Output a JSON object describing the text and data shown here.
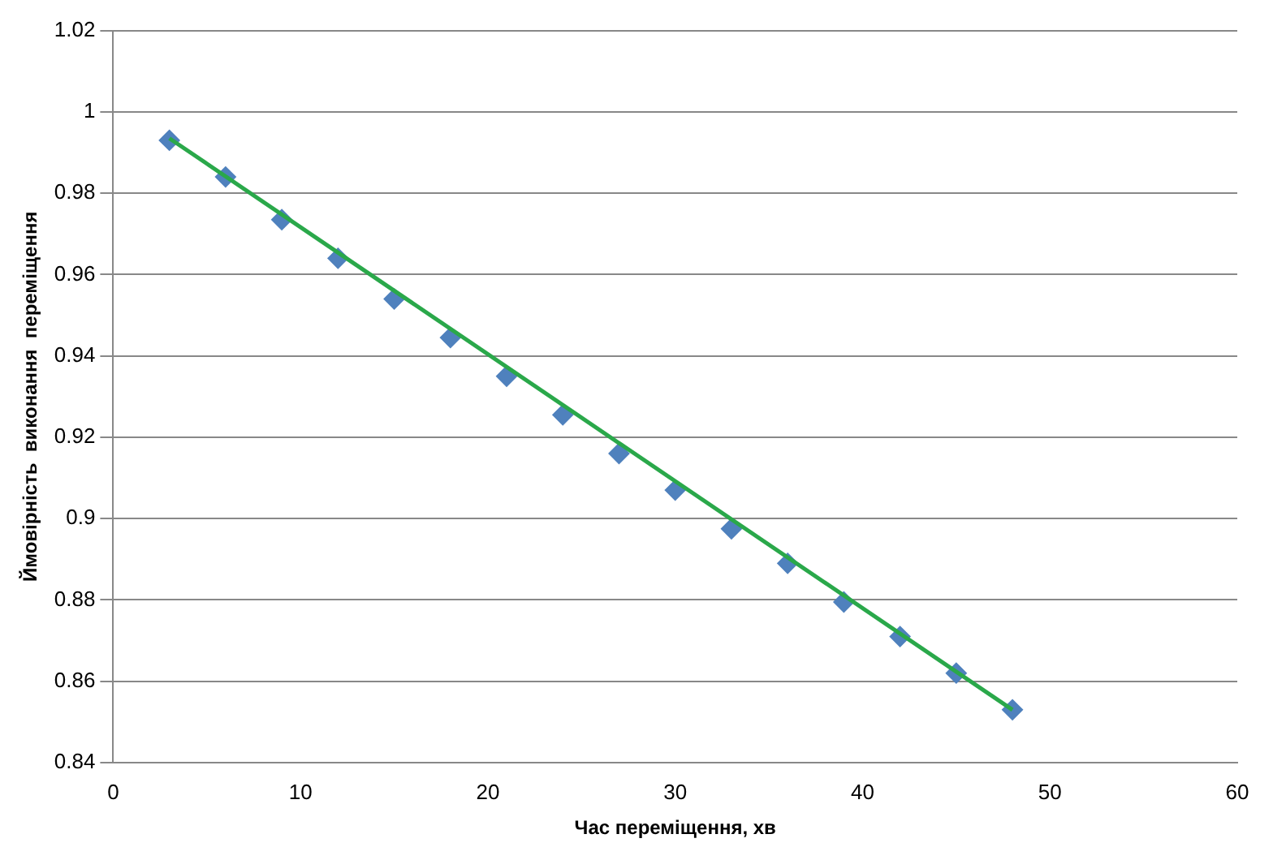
{
  "chart_data": {
    "type": "scatter",
    "xlabel": "Час переміщення, хв",
    "ylabel": "Ймовірність  виконання  переміщення",
    "xlim": [
      0,
      60
    ],
    "xticks": [
      0,
      10,
      20,
      30,
      40,
      50,
      60
    ],
    "ylim": [
      0.84,
      1.02
    ],
    "yticks": [
      0.84,
      0.86,
      0.88,
      0.9,
      0.92,
      0.94,
      0.96,
      0.98,
      1,
      1.02
    ],
    "grid": "y",
    "legend": false,
    "series": [
      {
        "type": "line",
        "x": [
          3,
          48
        ],
        "values": [
          0.9935,
          0.853
        ],
        "color": "#2aa84a",
        "marker": "none",
        "line_style": "solid"
      },
      {
        "type": "scatter",
        "x": [
          3,
          6,
          9,
          12,
          15,
          18,
          21,
          24,
          27,
          30,
          33,
          36,
          39,
          42,
          45,
          48
        ],
        "values": [
          0.993,
          0.984,
          0.9735,
          0.964,
          0.954,
          0.9445,
          0.935,
          0.9255,
          0.916,
          0.907,
          0.8975,
          0.889,
          0.8795,
          0.871,
          0.862,
          0.853
        ],
        "color": "#4f81bd",
        "marker": "diamond"
      }
    ]
  }
}
